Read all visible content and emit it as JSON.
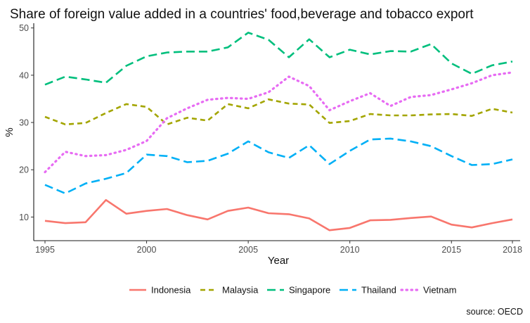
{
  "chart_data": {
    "type": "line",
    "title": "Share of foreign value added in a countries' food,beverage and tobacco export",
    "xlabel": "Year",
    "ylabel": "%",
    "caption": "source: OECD",
    "x": [
      1995,
      1996,
      1997,
      1998,
      1999,
      2000,
      2001,
      2002,
      2003,
      2004,
      2005,
      2006,
      2007,
      2008,
      2009,
      2010,
      2011,
      2012,
      2013,
      2014,
      2015,
      2016,
      2017,
      2018
    ],
    "xlim": [
      1995,
      2018
    ],
    "ylim": [
      5,
      51
    ],
    "x_ticks": [
      "1995",
      "2000",
      "2005",
      "2010",
      "2015",
      "2018"
    ],
    "y_ticks": [
      "10",
      "20",
      "30",
      "40",
      "50"
    ],
    "grid": false,
    "legend_position": "bottom",
    "series": [
      {
        "name": "Indonesia",
        "color": "#F8766D",
        "dash": "solid",
        "values": [
          9.2,
          8.7,
          8.9,
          13.6,
          10.7,
          11.3,
          11.7,
          10.4,
          9.5,
          11.3,
          12.0,
          10.8,
          10.6,
          9.7,
          7.2,
          7.7,
          9.3,
          9.4,
          9.8,
          10.1,
          8.4,
          7.8,
          8.7,
          9.5
        ]
      },
      {
        "name": "Malaysia",
        "color": "#A3A500",
        "dash": "dashed",
        "values": [
          31.2,
          29.6,
          29.9,
          32.0,
          33.9,
          33.3,
          29.6,
          31.0,
          30.4,
          33.9,
          33.0,
          34.9,
          34.0,
          33.8,
          29.9,
          30.3,
          31.8,
          31.5,
          31.5,
          31.7,
          31.8,
          31.4,
          32.9,
          32.1
        ]
      },
      {
        "name": "Singapore",
        "color": "#00BF7D",
        "dash": "longdash",
        "values": [
          38.0,
          39.7,
          39.1,
          38.4,
          42.0,
          44.0,
          44.8,
          45.0,
          45.0,
          45.9,
          49.0,
          47.5,
          43.8,
          47.6,
          43.8,
          45.4,
          44.4,
          45.1,
          45.0,
          46.6,
          42.5,
          40.3,
          42.1,
          42.9
        ]
      },
      {
        "name": "Thailand",
        "color": "#00B0F6",
        "dash": "longdash",
        "values": [
          16.8,
          15.0,
          17.1,
          18.1,
          19.3,
          23.2,
          22.9,
          21.6,
          21.9,
          23.4,
          26.0,
          23.7,
          22.5,
          25.2,
          21.2,
          24.0,
          26.4,
          26.6,
          26.0,
          25.0,
          22.9,
          21.0,
          21.2,
          22.2
        ]
      },
      {
        "name": "Vietnam",
        "color": "#E76BF3",
        "dash": "dotted",
        "values": [
          19.5,
          23.8,
          22.9,
          23.1,
          24.2,
          26.1,
          30.9,
          33.0,
          34.8,
          35.2,
          35.0,
          36.4,
          39.7,
          37.7,
          32.6,
          34.5,
          36.2,
          33.5,
          35.4,
          35.8,
          37.0,
          38.3,
          40.0,
          40.6
        ]
      }
    ]
  }
}
